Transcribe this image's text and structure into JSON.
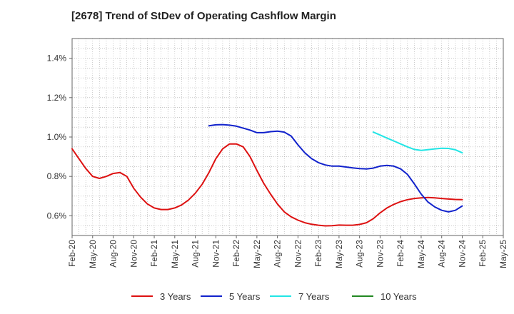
{
  "chart_data": {
    "type": "line",
    "title": "[2678]  Trend of StDev of Operating Cashflow Margin",
    "xlabel": "",
    "ylabel": "",
    "x_tick_labels": [
      "Feb-20",
      "May-20",
      "Aug-20",
      "Nov-20",
      "Feb-21",
      "May-21",
      "Aug-21",
      "Nov-21",
      "Feb-22",
      "May-22",
      "Aug-22",
      "Nov-22",
      "Feb-23",
      "May-23",
      "Aug-23",
      "Nov-23",
      "Feb-24",
      "May-24",
      "Aug-24",
      "Nov-24",
      "Feb-25",
      "May-25"
    ],
    "y_ticks": [
      0.6,
      0.8,
      1.0,
      1.2,
      1.4
    ],
    "y_tick_labels": [
      "0.6%",
      "0.8%",
      "1.0%",
      "1.2%",
      "1.4%"
    ],
    "ylim": [
      0.5,
      1.5
    ],
    "x_range_months": [
      0,
      63
    ],
    "grid": true,
    "legend_position": "bottom",
    "series": [
      {
        "name": "3 Years",
        "color": "#dd1111",
        "x_months": [
          0,
          1,
          2,
          3,
          4,
          5,
          6,
          7,
          8,
          9,
          10,
          11,
          12,
          13,
          14,
          15,
          16,
          17,
          18,
          19,
          20,
          21,
          22,
          23,
          24,
          25,
          26,
          27,
          28,
          29,
          30,
          31,
          32,
          33,
          34,
          35,
          36,
          37,
          38,
          39,
          40,
          41,
          42,
          43,
          44,
          45,
          46,
          47,
          48,
          49,
          50,
          51,
          52,
          53,
          54,
          55,
          56,
          57
        ],
        "values": [
          0.94,
          0.89,
          0.84,
          0.8,
          0.79,
          0.8,
          0.815,
          0.82,
          0.8,
          0.74,
          0.695,
          0.66,
          0.64,
          0.632,
          0.632,
          0.64,
          0.655,
          0.68,
          0.715,
          0.76,
          0.82,
          0.89,
          0.94,
          0.965,
          0.965,
          0.95,
          0.9,
          0.83,
          0.765,
          0.71,
          0.66,
          0.62,
          0.595,
          0.578,
          0.565,
          0.557,
          0.552,
          0.549,
          0.55,
          0.553,
          0.552,
          0.552,
          0.556,
          0.565,
          0.585,
          0.615,
          0.64,
          0.658,
          0.672,
          0.682,
          0.688,
          0.691,
          0.693,
          0.691,
          0.688,
          0.685,
          0.683,
          0.682
        ]
      },
      {
        "name": "5 Years",
        "color": "#1122cc",
        "x_months": [
          20,
          21,
          22,
          23,
          24,
          25,
          26,
          27,
          28,
          29,
          30,
          31,
          32,
          33,
          34,
          35,
          36,
          37,
          38,
          39,
          40,
          41,
          42,
          43,
          44,
          45,
          46,
          47,
          48,
          49,
          50,
          51,
          52,
          53,
          54,
          55,
          56,
          57
        ],
        "values": [
          1.057,
          1.062,
          1.063,
          1.06,
          1.055,
          1.045,
          1.035,
          1.022,
          1.022,
          1.027,
          1.03,
          1.025,
          1.005,
          0.96,
          0.92,
          0.89,
          0.87,
          0.858,
          0.852,
          0.852,
          0.848,
          0.843,
          0.84,
          0.838,
          0.842,
          0.852,
          0.856,
          0.852,
          0.838,
          0.81,
          0.762,
          0.71,
          0.67,
          0.645,
          0.628,
          0.62,
          0.628,
          0.65
        ]
      },
      {
        "name": "7 Years",
        "color": "#22e5e5",
        "x_months": [
          44,
          45,
          46,
          47,
          48,
          49,
          50,
          51,
          52,
          53,
          54,
          55,
          56,
          57
        ],
        "values": [
          1.025,
          1.01,
          0.995,
          0.98,
          0.965,
          0.95,
          0.937,
          0.932,
          0.936,
          0.94,
          0.943,
          0.942,
          0.935,
          0.92
        ]
      },
      {
        "name": "10 Years",
        "color": "#228822",
        "x_months": [],
        "values": []
      }
    ]
  }
}
